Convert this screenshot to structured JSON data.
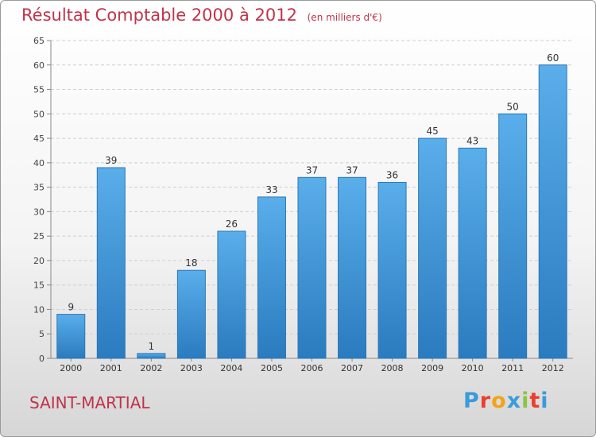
{
  "header": {
    "title": "Résultat Comptable 2000 à 2012",
    "subtitle": "(en milliers d'€)"
  },
  "footer": {
    "place": "SAINT-MARTIAL",
    "logo_letters": [
      "P",
      "r",
      "o",
      "x",
      "i",
      "t",
      "i"
    ],
    "logo_colors": [
      "#3a9bd9",
      "#e8412c",
      "#f3a21a",
      "#3a9bd9",
      "#8cc63f",
      "#e8412c",
      "#3a9bd9"
    ]
  },
  "colors": {
    "bar": "#4a9fe0",
    "bar_dark": "#2a7bbf",
    "title": "#c0334a",
    "grid": "#cfcfcf"
  },
  "chart_data": {
    "type": "bar",
    "categories": [
      "2000",
      "2001",
      "2002",
      "2003",
      "2004",
      "2005",
      "2006",
      "2007",
      "2008",
      "2009",
      "2010",
      "2011",
      "2012"
    ],
    "values": [
      9,
      39,
      1,
      18,
      26,
      33,
      37,
      37,
      36,
      45,
      43,
      50,
      60
    ],
    "title": "Résultat Comptable 2000 à 2012",
    "xlabel": "",
    "ylabel": "",
    "ylim": [
      0,
      65
    ],
    "yticks": [
      0,
      5,
      10,
      15,
      20,
      25,
      30,
      35,
      40,
      45,
      50,
      55,
      60,
      65
    ],
    "grid": true
  }
}
